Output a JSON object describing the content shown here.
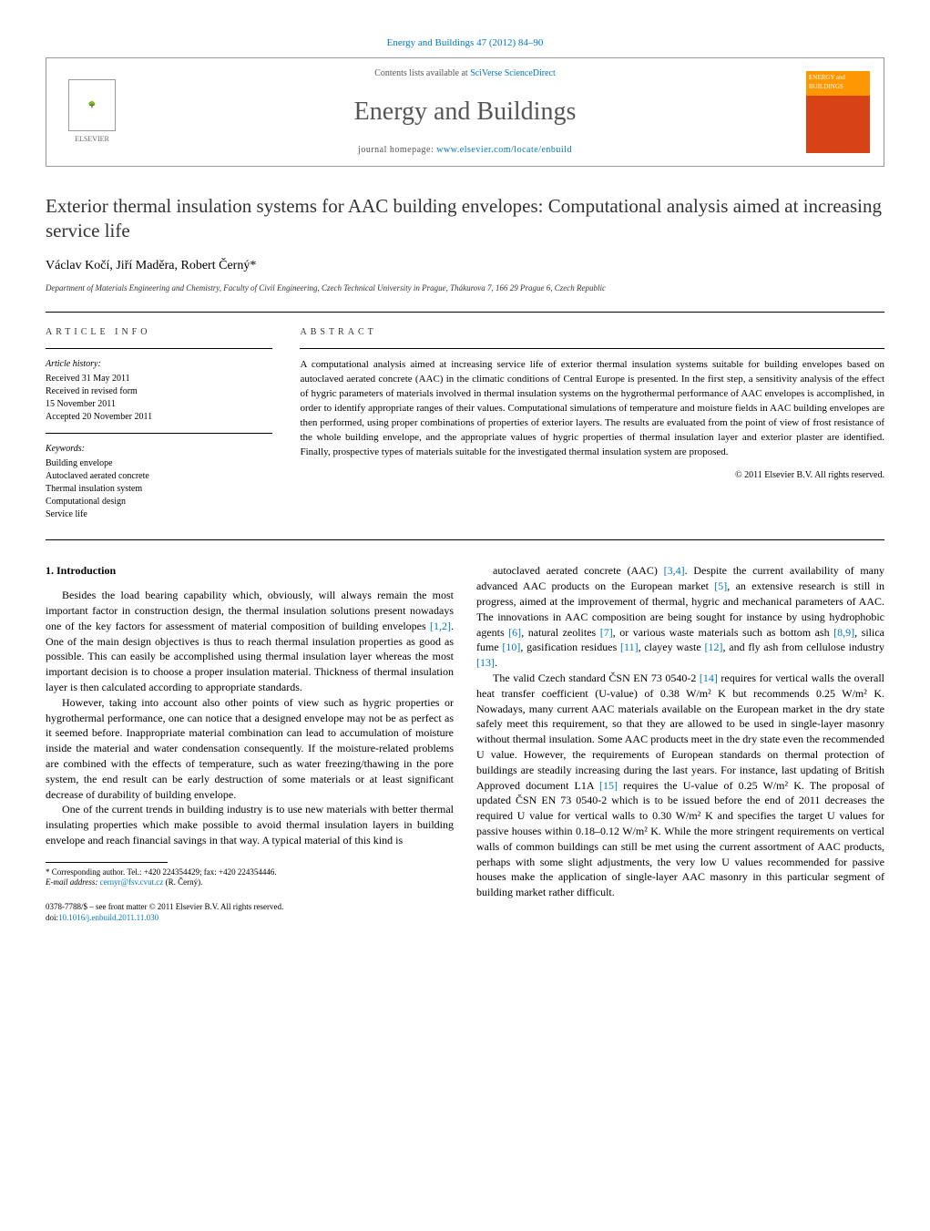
{
  "header": {
    "citation": "Energy and Buildings 47 (2012) 84–90",
    "contents_prefix": "Contents lists available at ",
    "contents_link": "SciVerse ScienceDirect",
    "journal_name": "Energy and Buildings",
    "homepage_prefix": "journal homepage: ",
    "homepage_link": "www.elsevier.com/locate/enbuild",
    "publisher": "ELSEVIER",
    "cover_label": "ENERGY and BUILDINGS"
  },
  "article": {
    "title": "Exterior thermal insulation systems for AAC building envelopes: Computational analysis aimed at increasing service life",
    "authors": "Václav Kočí, Jiří Maděra, Robert Černý*",
    "affiliation": "Department of Materials Engineering and Chemistry, Faculty of Civil Engineering, Czech Technical University in Prague, Thákurova 7, 166 29 Prague 6, Czech Republic"
  },
  "info": {
    "heading": "ARTICLE INFO",
    "history_label": "Article history:",
    "received": "Received 31 May 2011",
    "revised": "Received in revised form",
    "revised_date": "15 November 2011",
    "accepted": "Accepted 20 November 2011",
    "keywords_label": "Keywords:",
    "keywords": [
      "Building envelope",
      "Autoclaved aerated concrete",
      "Thermal insulation system",
      "Computational design",
      "Service life"
    ]
  },
  "abstract": {
    "heading": "ABSTRACT",
    "text": "A computational analysis aimed at increasing service life of exterior thermal insulation systems suitable for building envelopes based on autoclaved aerated concrete (AAC) in the climatic conditions of Central Europe is presented. In the first step, a sensitivity analysis of the effect of hygric parameters of materials involved in thermal insulation systems on the hygrothermal performance of AAC envelopes is accomplished, in order to identify appropriate ranges of their values. Computational simulations of temperature and moisture fields in AAC building envelopes are then performed, using proper combinations of properties of exterior layers. The results are evaluated from the point of view of frost resistance of the whole building envelope, and the appropriate values of hygric properties of thermal insulation layer and exterior plaster are identified. Finally, prospective types of materials suitable for the investigated thermal insulation system are proposed.",
    "copyright": "© 2011 Elsevier B.V. All rights reserved."
  },
  "body": {
    "section_1_heading": "1. Introduction",
    "p1": "Besides the load bearing capability which, obviously, will always remain the most important factor in construction design, the thermal insulation solutions present nowadays one of the key factors for assessment of material composition of building envelopes [1,2]. One of the main design objectives is thus to reach thermal insulation properties as good as possible. This can easily be accomplished using thermal insulation layer whereas the most important decision is to choose a proper insulation material. Thickness of thermal insulation layer is then calculated according to appropriate standards.",
    "p2": "However, taking into account also other points of view such as hygric properties or hygrothermal performance, one can notice that a designed envelope may not be as perfect as it seemed before. Inappropriate material combination can lead to accumulation of moisture inside the material and water condensation consequently. If the moisture-related problems are combined with the effects of temperature, such as water freezing/thawing in the pore system, the end result can be early destruction of some materials or at least significant decrease of durability of building envelope.",
    "p3": "One of the current trends in building industry is to use new materials with better thermal insulating properties which make possible to avoid thermal insulation layers in building envelope and reach financial savings in that way. A typical material of this kind is",
    "p4": "autoclaved aerated concrete (AAC) [3,4]. Despite the current availability of many advanced AAC products on the European market [5], an extensive research is still in progress, aimed at the improvement of thermal, hygric and mechanical parameters of AAC. The innovations in AAC composition are being sought for instance by using hydrophobic agents [6], natural zeolites [7], or various waste materials such as bottom ash [8,9], silica fume [10], gasification residues [11], clayey waste [12], and fly ash from cellulose industry [13].",
    "p5": "The valid Czech standard ČSN EN 73 0540-2 [14] requires for vertical walls the overall heat transfer coefficient (U-value) of 0.38 W/m² K but recommends 0.25 W/m² K. Nowadays, many current AAC materials available on the European market in the dry state safely meet this requirement, so that they are allowed to be used in single-layer masonry without thermal insulation. Some AAC products meet in the dry state even the recommended U value. However, the requirements of European standards on thermal protection of buildings are steadily increasing during the last years. For instance, last updating of British Approved document L1A [15] requires the U-value of 0.25 W/m² K. The proposal of updated ČSN EN 73 0540-2 which is to be issued before the end of 2011 decreases the required U value for vertical walls to 0.30 W/m² K and specifies the target U values for passive houses within 0.18–0.12 W/m² K. While the more stringent requirements on vertical walls of common buildings can still be met using the current assortment of AAC products, perhaps with some slight adjustments, the very low U values recommended for passive houses make the application of single-layer AAC masonry in this particular segment of building market rather difficult."
  },
  "footnote": {
    "corresponding": "* Corresponding author. Tel.: +420 224354429; fax: +420 224354446.",
    "email_label": "E-mail address: ",
    "email": "cernyr@fsv.cvut.cz",
    "email_suffix": " (R. Černý)."
  },
  "footer": {
    "issn": "0378-7788/$ – see front matter © 2011 Elsevier B.V. All rights reserved.",
    "doi_label": "doi:",
    "doi": "10.1016/j.enbuild.2011.11.030"
  },
  "colors": {
    "link": "#0277bd",
    "text": "#000000",
    "header_gray": "#555555"
  }
}
